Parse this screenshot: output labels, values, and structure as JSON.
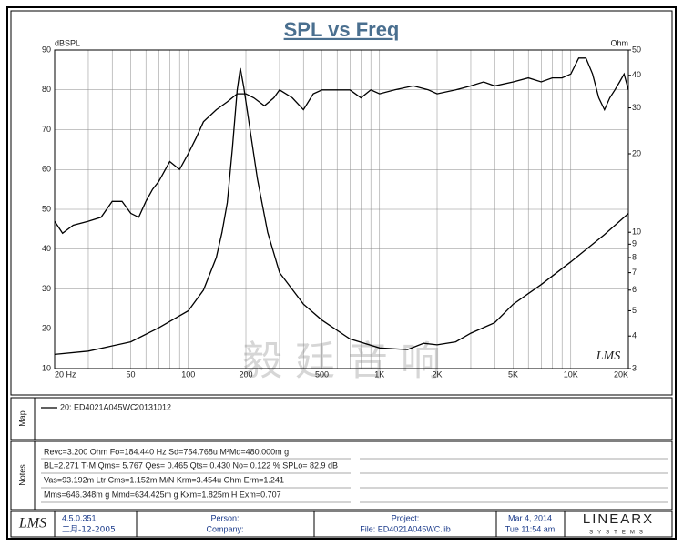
{
  "chart_data": {
    "type": "line",
    "title": "SPL vs Freq",
    "y_label": "dBSPL",
    "y2_label": "Ohm",
    "xlog": true,
    "y2log": true,
    "grid": true,
    "xlim": [
      20,
      20000
    ],
    "ylim": [
      10,
      90
    ],
    "y2lim": [
      3,
      50
    ],
    "xticks": [
      {
        "value": 20,
        "label": "20 Hz"
      },
      50,
      100,
      200,
      500,
      {
        "value": 1000,
        "label": "1K"
      },
      {
        "value": 2000,
        "label": "2K"
      },
      {
        "value": 5000,
        "label": "5K"
      },
      {
        "value": 10000,
        "label": "10K"
      },
      {
        "value": 20000,
        "label": "20K"
      }
    ],
    "xgrid": [
      30,
      40,
      60,
      70,
      80,
      90,
      300,
      400,
      600,
      700,
      800,
      900,
      3000,
      4000,
      6000,
      7000,
      8000,
      9000
    ],
    "yticks": [
      10,
      20,
      30,
      40,
      50,
      60,
      70,
      80,
      90
    ],
    "y2ticks": [
      3,
      4,
      5,
      6,
      7,
      8,
      9,
      10,
      20,
      30,
      40,
      50
    ],
    "series": [
      {
        "color": "#000000",
        "x": [
          20,
          22,
          25,
          30,
          35,
          40,
          45,
          50,
          55,
          60,
          65,
          70,
          80,
          90,
          100,
          110,
          120,
          140,
          160,
          180,
          200,
          220,
          250,
          280,
          300,
          350,
          400,
          450,
          500,
          600,
          700,
          800,
          900,
          1000,
          1200,
          1500,
          1800,
          2000,
          2500,
          3000,
          3500,
          4000,
          5000,
          6000,
          7000,
          8000,
          9000,
          10000,
          11000,
          12000,
          13000,
          14000,
          15000,
          16000,
          17000,
          18000,
          19000,
          20000
        ],
        "values": [
          47,
          44,
          46,
          47,
          48,
          52,
          52,
          49,
          48,
          52,
          55,
          57,
          62,
          60,
          64,
          68,
          72,
          75,
          77,
          79,
          79,
          78,
          76,
          78,
          80,
          78,
          75,
          79,
          80,
          80,
          80,
          78,
          80,
          79,
          80,
          81,
          80,
          79,
          80,
          81,
          82,
          81,
          82,
          83,
          82,
          83,
          83,
          84,
          88,
          88,
          84,
          78,
          75,
          78,
          80,
          82,
          84,
          80
        ]
      },
      {
        "color": "#000000",
        "axis": "y2",
        "x": [
          20,
          30,
          50,
          70,
          100,
          120,
          140,
          150,
          160,
          170,
          180,
          187,
          195,
          210,
          230,
          260,
          300,
          400,
          500,
          700,
          1000,
          1400,
          1700,
          2000,
          2500,
          3000,
          4000,
          5000,
          7000,
          10000,
          15000,
          20000
        ],
        "values": [
          3.4,
          3.5,
          3.8,
          4.3,
          5,
          6,
          8,
          10,
          13,
          21,
          35,
          42.6,
          36,
          25,
          16,
          10,
          7,
          5.3,
          4.6,
          3.9,
          3.6,
          3.55,
          3.75,
          3.7,
          3.8,
          4.1,
          4.5,
          5.3,
          6.3,
          7.7,
          9.8,
          11.8
        ]
      }
    ],
    "legend_label": "20: ED4021A045WC",
    "legend_date": "20131012",
    "watermark": "毅 廷 音 响",
    "plot_logo": "LMS"
  },
  "panels": {
    "map_label": "Map",
    "notes_label": "Notes",
    "notes": [
      "Revc=3.200 Ohm  Fo=184.440 Hz  Sd=754.768u M²Md=480.000m g",
      "BL=2.271 T·M  Qms= 5.767  Qes= 0.465  Qts= 0.430  No= 0.122 %  SPLo= 82.9 dB",
      "Vas=93.192m Ltr  Cms=1.152m M/N  Krm=3.454u Ohm  Erm=1.241",
      "Mms=646.348m g  Mmd=634.425m g  Kxm=1.825m H  Exm=0.707"
    ]
  },
  "footer": {
    "logo": "LMS",
    "version": "4.5.0.351",
    "version_date": "二月-12-2005",
    "person": "Person:",
    "company": "Company:",
    "project": "Project:",
    "file": "File: ED4021A045WC.lib",
    "date": "Mar  4, 2014",
    "time": "Tue 11:54 am",
    "brand": "LINEARX",
    "brand_sub": "SYSTEMS"
  }
}
